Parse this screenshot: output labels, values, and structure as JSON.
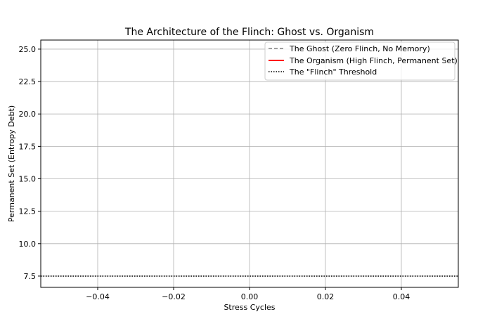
{
  "chart_data": {
    "type": "line",
    "title": "The Architecture of the Flinch: Ghost vs. Organism",
    "xlabel": "Stress Cycles",
    "ylabel": "Permanent Set (Entropy Debt)",
    "xlim": [
      -0.055,
      0.055
    ],
    "ylim": [
      6.63,
      25.7
    ],
    "xticks": [
      -0.04,
      -0.02,
      0.0,
      0.02,
      0.04
    ],
    "xtick_labels": [
      "−0.04",
      "−0.02",
      "0.00",
      "0.02",
      "0.04"
    ],
    "yticks": [
      7.5,
      10.0,
      12.5,
      15.0,
      17.5,
      20.0,
      22.5,
      25.0
    ],
    "ytick_labels": [
      "7.5",
      "10.0",
      "12.5",
      "15.0",
      "17.5",
      "20.0",
      "22.5",
      "25.0"
    ],
    "grid": true,
    "legend_position": "top-right",
    "series": [
      {
        "name": "The Ghost (Zero Flinch, No Memory)",
        "style": "dashed",
        "color": "#808080",
        "x": [],
        "y": []
      },
      {
        "name": "The Organism (High Flinch, Permanent Set)",
        "style": "solid",
        "color": "#ff0000",
        "x": [],
        "y": []
      }
    ],
    "hlines": [
      {
        "name": "The \"Flinch\" Threshold",
        "y": 7.5,
        "style": "dotted",
        "color": "#000000"
      }
    ]
  }
}
